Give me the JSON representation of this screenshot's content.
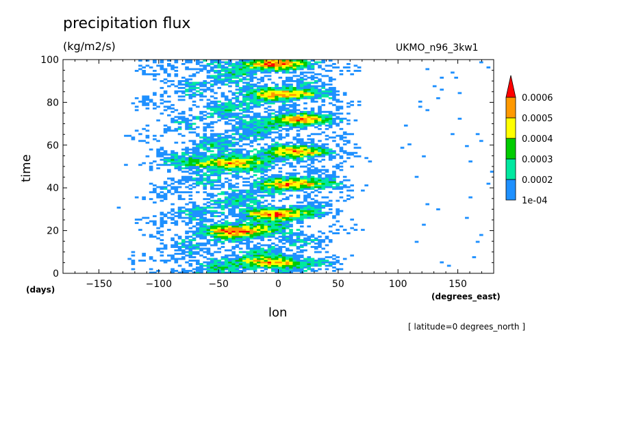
{
  "chart_data": {
    "type": "heatmap",
    "title": "precipitation flux",
    "units": "(kg/m2/s)",
    "dataset": "UKMO_n96_3kw1",
    "xlabel": "lon",
    "xunits": "(degrees_east)",
    "ylabel": "time",
    "yunits": "(days)",
    "note": "[ latitude=0 degrees_north ]",
    "xlim": [
      -180,
      180
    ],
    "ylim": [
      0,
      100
    ],
    "xticks": [
      -150,
      -100,
      -50,
      0,
      50,
      100,
      150
    ],
    "yticks": [
      0,
      20,
      40,
      60,
      80,
      100
    ],
    "colorbar": {
      "levels": [
        "1e-04",
        "0.0002",
        "0.0003",
        "0.0004",
        "0.0005",
        "0.0006"
      ],
      "colors": [
        "#1e90ff",
        "#00e8a0",
        "#00cc00",
        "#ffff00",
        "#ff9900",
        "#ff0000"
      ],
      "extend": "max"
    },
    "features": [
      {
        "lon": 0,
        "time": 5,
        "level": 6
      },
      {
        "lon": -30,
        "time": 20,
        "level": 6
      },
      {
        "lon": 0,
        "time": 28,
        "level": 6
      },
      {
        "lon": 20,
        "time": 42,
        "level": 6
      },
      {
        "lon": -50,
        "time": 52,
        "level": 6
      },
      {
        "lon": 20,
        "time": 57,
        "level": 6
      },
      {
        "lon": 20,
        "time": 72,
        "level": 6
      },
      {
        "lon": 10,
        "time": 84,
        "level": 6
      },
      {
        "lon": 0,
        "time": 98,
        "level": 6
      }
    ]
  }
}
